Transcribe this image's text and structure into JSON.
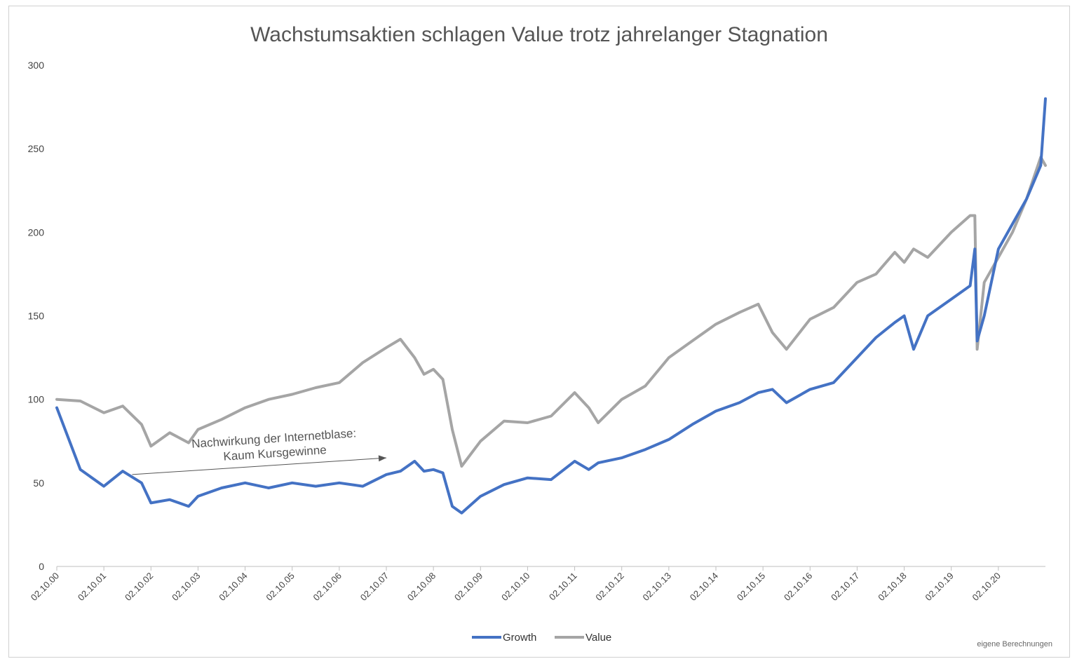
{
  "chart_data": {
    "type": "line",
    "title": "Wachstumsaktien schlagen Value trotz jahrelanger Stagnation",
    "xlabel": "",
    "ylabel": "",
    "ylim": [
      0,
      300
    ],
    "yticks": [
      "0",
      "50",
      "100",
      "150",
      "200",
      "250",
      "300"
    ],
    "categories": [
      "02.10.00",
      "02.10.01",
      "02.10.02",
      "02.10.03",
      "02.10.04",
      "02.10.05",
      "02.10.06",
      "02.10.07",
      "02.10.08",
      "02.10.09",
      "02.10.10",
      "02.10.11",
      "02.10.12",
      "02.10.13",
      "02.10.14",
      "02.10.15",
      "02.10.16",
      "02.10.17",
      "02.10.18",
      "02.10.19",
      "02.10.20"
    ],
    "x": [
      2000.0,
      2000.5,
      2001.0,
      2001.4,
      2001.8,
      2002.0,
      2002.4,
      2002.8,
      2003.0,
      2003.5,
      2004.0,
      2004.5,
      2005.0,
      2005.5,
      2006.0,
      2006.5,
      2007.0,
      2007.3,
      2007.6,
      2007.8,
      2008.0,
      2008.2,
      2008.4,
      2008.6,
      2009.0,
      2009.5,
      2010.0,
      2010.5,
      2011.0,
      2011.3,
      2011.5,
      2012.0,
      2012.5,
      2013.0,
      2013.5,
      2014.0,
      2014.5,
      2014.9,
      2015.2,
      2015.5,
      2016.0,
      2016.5,
      2017.0,
      2017.4,
      2017.8,
      2018.0,
      2018.2,
      2018.5,
      2019.0,
      2019.4,
      2019.5,
      2019.55,
      2019.7,
      2020.0,
      2020.3,
      2020.6,
      2020.9,
      2021.0
    ],
    "series": [
      {
        "name": "Growth",
        "color": "#4472C4",
        "values": [
          95,
          58,
          48,
          57,
          50,
          38,
          40,
          36,
          42,
          47,
          50,
          47,
          50,
          48,
          50,
          48,
          55,
          57,
          63,
          57,
          58,
          56,
          36,
          32,
          42,
          49,
          53,
          52,
          63,
          58,
          62,
          65,
          70,
          76,
          85,
          93,
          98,
          104,
          106,
          98,
          106,
          110,
          125,
          137,
          146,
          150,
          130,
          150,
          160,
          168,
          190,
          135,
          150,
          190,
          205,
          220,
          240,
          280
        ]
      },
      {
        "name": "Value",
        "color": "#A5A5A5",
        "values": [
          100,
          99,
          92,
          96,
          85,
          72,
          80,
          74,
          82,
          88,
          95,
          100,
          103,
          107,
          110,
          122,
          131,
          136,
          125,
          115,
          118,
          112,
          82,
          60,
          75,
          87,
          86,
          90,
          104,
          95,
          86,
          100,
          108,
          125,
          135,
          145,
          152,
          157,
          140,
          130,
          148,
          155,
          170,
          175,
          188,
          182,
          190,
          185,
          200,
          210,
          210,
          130,
          170,
          185,
          200,
          220,
          245,
          240
        ]
      }
    ],
    "legend": {
      "position": "bottom",
      "entries": [
        "Growth",
        "Value"
      ]
    },
    "annotations": [
      {
        "lines": [
          "Nachwirkung der Internetblase:",
          "Kaum Kursgewinne"
        ],
        "arrow_from": [
          2001.6,
          55
        ],
        "arrow_to": [
          2007.0,
          65
        ]
      }
    ],
    "grid": false
  },
  "credit": "eigene Berechnungen"
}
